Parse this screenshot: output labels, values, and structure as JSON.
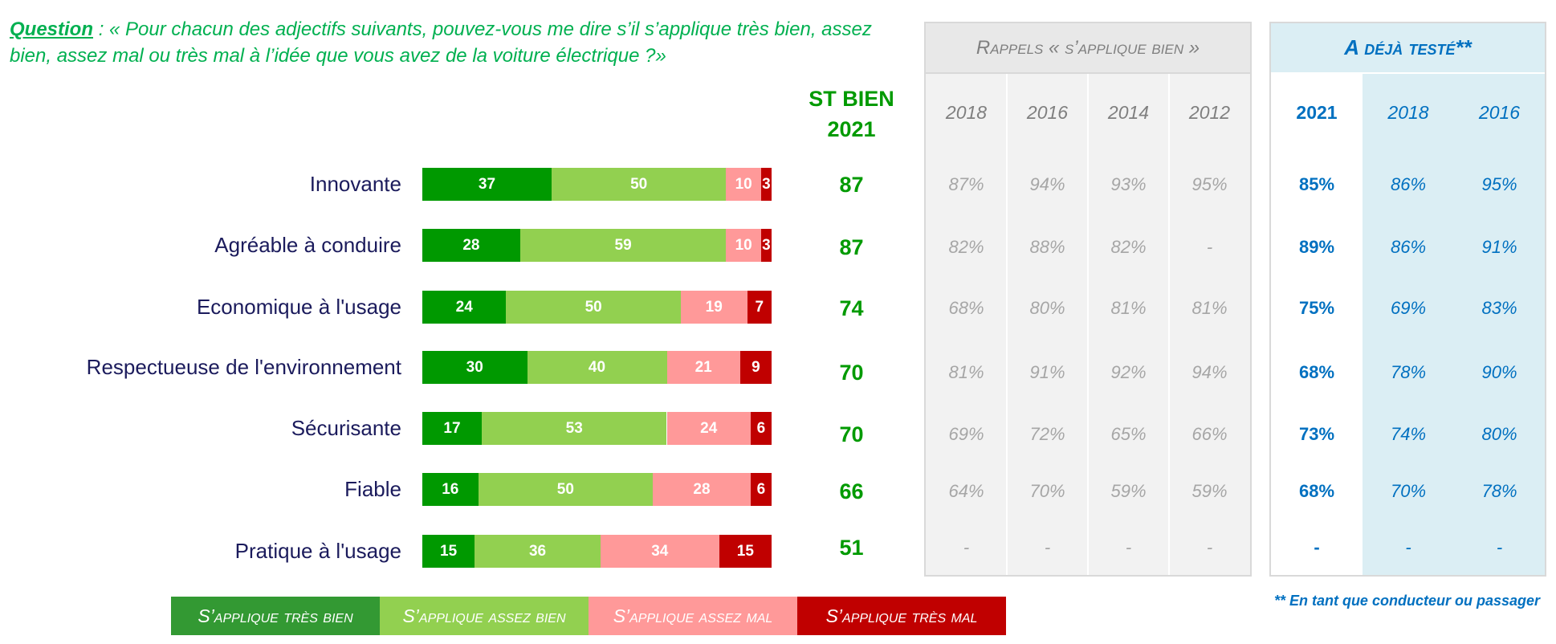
{
  "question": {
    "label": "Question",
    "line1": ": « Pour chacun des adjectifs suivants, pouvez-vous me dire s’il s’applique très bien, assez",
    "line2": "bien, assez mal ou très mal à l’idée que vous avez de la voiture électrique ?»"
  },
  "chart_data": {
    "type": "bar",
    "orientation": "horizontal",
    "stacked": true,
    "categories": [
      "Innovante",
      "Agréable à conduire",
      "Economique à l'usage",
      "Respectueuse de l'environnement",
      "Sécurisante",
      "Fiable",
      "Pratique à l'usage"
    ],
    "series": [
      {
        "name": "S’applique très bien",
        "color": "#009900",
        "legend_color": "#339933",
        "values": [
          37,
          28,
          24,
          30,
          17,
          16,
          15
        ]
      },
      {
        "name": "S’applique assez bien",
        "color": "#92d050",
        "legend_color": "#92d050",
        "values": [
          50,
          59,
          50,
          40,
          53,
          50,
          36
        ]
      },
      {
        "name": "S’applique assez mal",
        "color": "#ff9999",
        "legend_color": "#ff9999",
        "values": [
          10,
          10,
          19,
          21,
          24,
          28,
          34
        ]
      },
      {
        "name": "S’applique très mal",
        "color": "#c00000",
        "legend_color": "#c00000",
        "values": [
          3,
          3,
          7,
          9,
          6,
          6,
          15
        ]
      }
    ],
    "xlim": [
      0,
      100
    ],
    "grid": false,
    "legend": "bottom"
  },
  "st_bien": {
    "header_line1": "ST BIEN",
    "header_line2": "2021",
    "values": [
      87,
      87,
      74,
      70,
      70,
      66,
      51
    ]
  },
  "rappels": {
    "title": "Rappels « s’applique bien »",
    "years": [
      "2018",
      "2016",
      "2014",
      "2012"
    ],
    "rows": [
      [
        "87%",
        "94%",
        "93%",
        "95%"
      ],
      [
        "82%",
        "88%",
        "82%",
        "-"
      ],
      [
        "68%",
        "80%",
        "81%",
        "81%"
      ],
      [
        "81%",
        "91%",
        "92%",
        "94%"
      ],
      [
        "69%",
        "72%",
        "65%",
        "66%"
      ],
      [
        "64%",
        "70%",
        "59%",
        "59%"
      ],
      [
        "-",
        "-",
        "-",
        "-"
      ]
    ]
  },
  "deja_teste": {
    "title": "A déjà testé**",
    "years": [
      "2021",
      "2018",
      "2016"
    ],
    "rows": [
      [
        "85%",
        "86%",
        "95%"
      ],
      [
        "89%",
        "86%",
        "91%"
      ],
      [
        "75%",
        "69%",
        "83%"
      ],
      [
        "68%",
        "78%",
        "90%"
      ],
      [
        "73%",
        "74%",
        "80%"
      ],
      [
        "68%",
        "70%",
        "78%"
      ],
      [
        "-",
        "-",
        "-"
      ]
    ]
  },
  "footnote": "** En tant que conducteur ou passager",
  "colors": {
    "question_text": "#00b050",
    "st_bien": "#009a00",
    "category_labels": "#1b1b5c",
    "rappels_years": "#7f7f7f",
    "rappels_values": "#a6a6a6",
    "rappels_panel": "#f2f2f2",
    "rappels_header": "#e8e8e8",
    "deja_teste_text": "#0070c0",
    "deja_teste_panel": "#dbeef4"
  }
}
